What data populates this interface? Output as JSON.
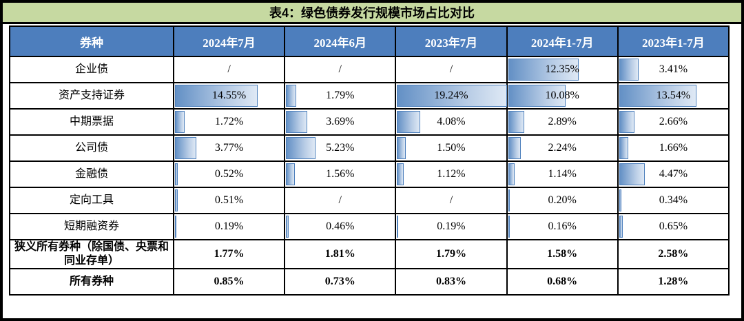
{
  "title": "表4：绿色债券发行规模市场占比对比",
  "chart_data": {
    "type": "table",
    "title": "表4：绿色债券发行规模市场占比对比",
    "columns": [
      "券种",
      "2024年7月",
      "2024年6月",
      "2023年7月",
      "2024年1-7月",
      "2023年1-7月"
    ],
    "rows": [
      {
        "label": "企业债",
        "cells": [
          "/",
          "/",
          "/",
          "12.35%",
          "3.41%"
        ],
        "bar_values": [
          null,
          null,
          null,
          12.35,
          3.41
        ],
        "bold": false
      },
      {
        "label": "资产支持证券",
        "cells": [
          "14.55%",
          "1.79%",
          "19.24%",
          "10.08%",
          "13.54%"
        ],
        "bar_values": [
          14.55,
          1.79,
          19.24,
          10.08,
          13.54
        ],
        "bold": false
      },
      {
        "label": "中期票据",
        "cells": [
          "1.72%",
          "3.69%",
          "4.08%",
          "2.89%",
          "2.66%"
        ],
        "bar_values": [
          1.72,
          3.69,
          4.08,
          2.89,
          2.66
        ],
        "bold": false
      },
      {
        "label": "公司债",
        "cells": [
          "3.77%",
          "5.23%",
          "1.50%",
          "2.24%",
          "1.66%"
        ],
        "bar_values": [
          3.77,
          5.23,
          1.5,
          2.24,
          1.66
        ],
        "bold": false
      },
      {
        "label": "金融债",
        "cells": [
          "0.52%",
          "1.56%",
          "1.12%",
          "1.14%",
          "4.47%"
        ],
        "bar_values": [
          0.52,
          1.56,
          1.12,
          1.14,
          4.47
        ],
        "bold": false
      },
      {
        "label": "定向工具",
        "cells": [
          "0.51%",
          "/",
          "/",
          "0.20%",
          "0.34%"
        ],
        "bar_values": [
          0.51,
          null,
          null,
          0.2,
          0.34
        ],
        "bold": false
      },
      {
        "label": "短期融资券",
        "cells": [
          "0.19%",
          "0.46%",
          "0.19%",
          "0.16%",
          "0.65%"
        ],
        "bar_values": [
          0.19,
          0.46,
          0.19,
          0.16,
          0.65
        ],
        "bold": false
      },
      {
        "label": "狭义所有券种（除国债、央票和同业存单）",
        "cells": [
          "1.77%",
          "1.81%",
          "1.79%",
          "1.58%",
          "2.58%"
        ],
        "bar_values": [
          null,
          null,
          null,
          null,
          null
        ],
        "bold": true
      },
      {
        "label": "所有券种",
        "cells": [
          "0.85%",
          "0.73%",
          "0.83%",
          "0.68%",
          "1.28%"
        ],
        "bar_values": [
          null,
          null,
          null,
          null,
          null
        ],
        "bold": true
      }
    ],
    "bar_scale_max": 19.24,
    "layout_hints": {
      "bars": "in-cell horizontal data bars, left aligned, scaled to table max value",
      "grid": "on",
      "bold_summary_rows": true
    },
    "colors": {
      "title_bg": "#c6d9a1",
      "header_bg": "#4d7ebd",
      "header_text": "#ffffff",
      "bar_fill_start": "#6390c5",
      "bar_fill_mid": "#b9cde6",
      "bar_fill_end": "#dfe9f5",
      "bar_border": "#4f81bd",
      "grid_line": "#000000"
    }
  }
}
